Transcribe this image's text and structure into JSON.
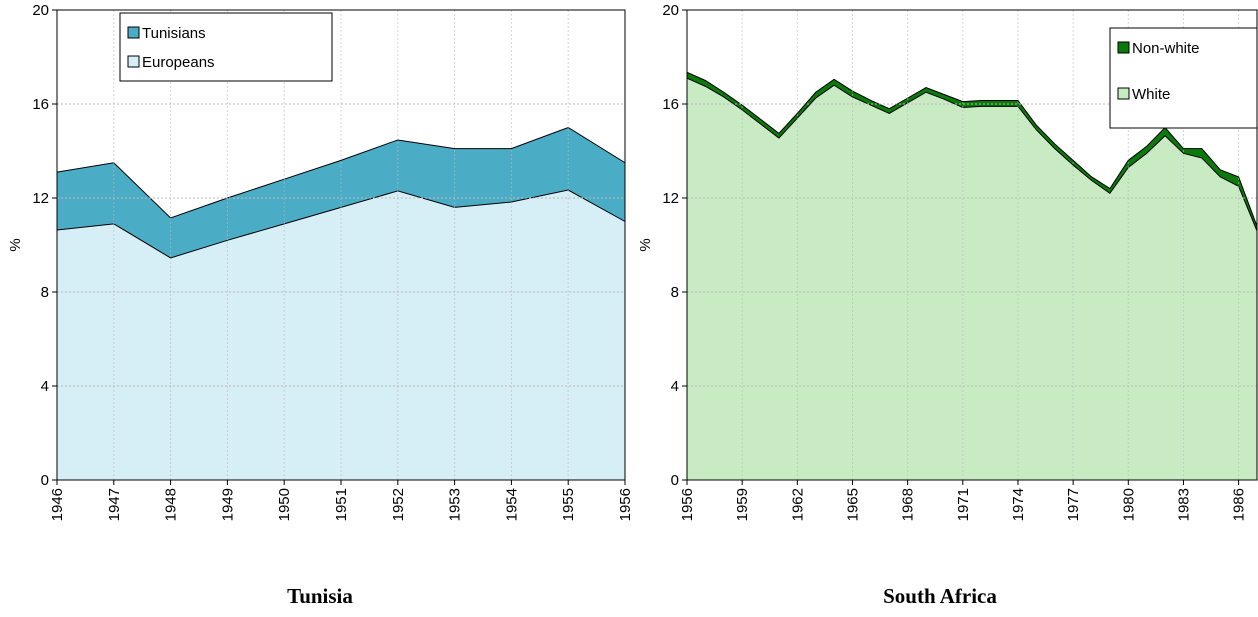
{
  "chart_data": [
    {
      "type": "area",
      "title": "Tunisia",
      "ylabel": "%",
      "x": [
        1946,
        1947,
        1948,
        1949,
        1950,
        1951,
        1952,
        1953,
        1954,
        1955,
        1956
      ],
      "series": [
        {
          "name": "Europeans",
          "color": "#d6eef6",
          "values": [
            10.64,
            10.9,
            9.45,
            10.2,
            10.9,
            11.6,
            12.3,
            11.6,
            11.83,
            12.34,
            11.0
          ]
        },
        {
          "name": "Tunisians",
          "color": "#4bacc6",
          "values": [
            2.46,
            2.6,
            1.7,
            1.8,
            1.9,
            2.0,
            2.17,
            2.5,
            2.27,
            2.66,
            2.5
          ]
        }
      ],
      "xlim": [
        1946,
        1956
      ],
      "xticks": [
        1946,
        1947,
        1948,
        1949,
        1950,
        1951,
        1952,
        1953,
        1954,
        1955,
        1956
      ],
      "ylim": [
        0,
        20
      ],
      "yticks": [
        0,
        4,
        8,
        12,
        16,
        20
      ],
      "grid": true,
      "legend": "upper left"
    },
    {
      "type": "area",
      "title": "South Africa",
      "ylabel": "%",
      "x": [
        1956,
        1957,
        1958,
        1959,
        1960,
        1961,
        1962,
        1963,
        1964,
        1965,
        1966,
        1967,
        1968,
        1969,
        1970,
        1971,
        1972,
        1973,
        1974,
        1975,
        1976,
        1977,
        1978,
        1979,
        1980,
        1981,
        1982,
        1983,
        1984,
        1985,
        1986,
        1987
      ],
      "series": [
        {
          "name": "White",
          "color": "#c8ebc4",
          "values": [
            17.1,
            16.75,
            16.3,
            15.75,
            15.15,
            14.55,
            15.4,
            16.25,
            16.8,
            16.3,
            15.95,
            15.6,
            16.05,
            16.5,
            16.2,
            15.85,
            15.9,
            15.9,
            15.9,
            14.9,
            14.1,
            13.4,
            12.75,
            12.2,
            13.3,
            13.9,
            14.65,
            13.9,
            13.7,
            12.9,
            12.5,
            10.6
          ]
        },
        {
          "name": "Non-white",
          "color": "#0a7a0a",
          "values": [
            0.25,
            0.25,
            0.2,
            0.2,
            0.2,
            0.2,
            0.2,
            0.25,
            0.25,
            0.25,
            0.2,
            0.2,
            0.2,
            0.2,
            0.2,
            0.25,
            0.25,
            0.25,
            0.25,
            0.2,
            0.2,
            0.2,
            0.15,
            0.2,
            0.3,
            0.3,
            0.35,
            0.2,
            0.4,
            0.3,
            0.4,
            0.2
          ]
        }
      ],
      "xlim": [
        1956,
        1987
      ],
      "xticks": [
        1956,
        1959,
        1962,
        1965,
        1968,
        1971,
        1974,
        1977,
        1980,
        1983,
        1986
      ],
      "ylim": [
        0,
        20
      ],
      "yticks": [
        0,
        4,
        8,
        12,
        16,
        20
      ],
      "grid": true,
      "legend": "upper right"
    }
  ]
}
